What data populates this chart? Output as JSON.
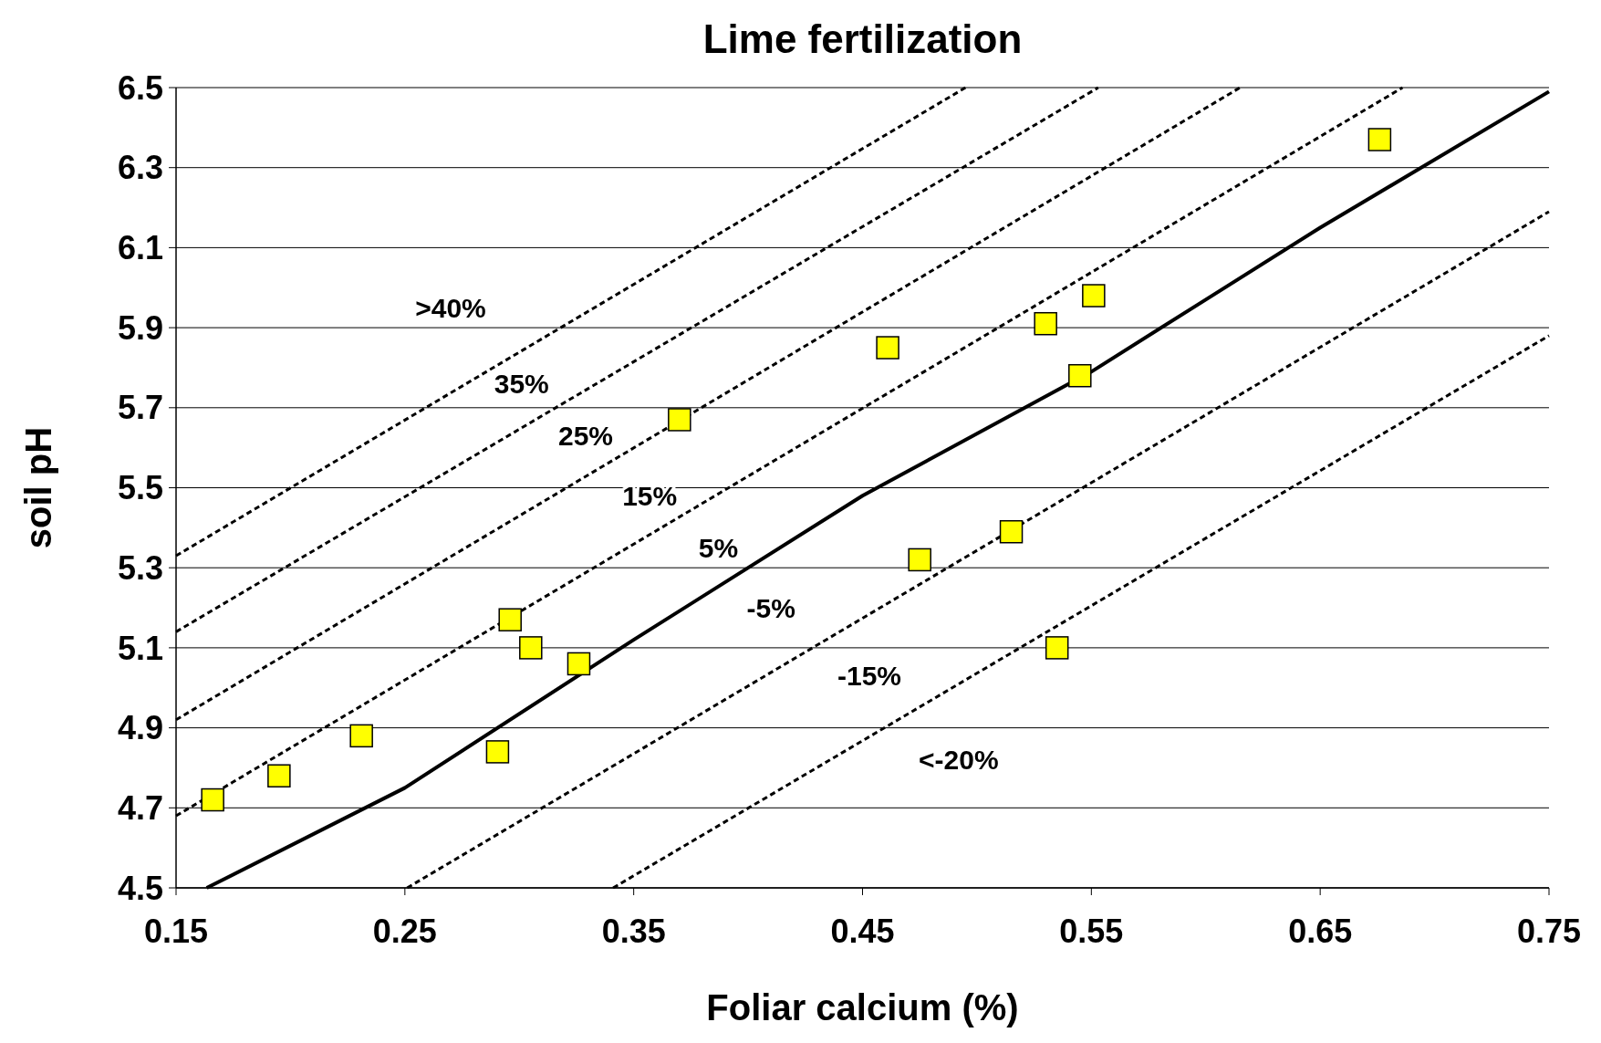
{
  "chart_data": {
    "type": "scatter",
    "title": "Lime fertilization",
    "xlabel": "Foliar calcium (%)",
    "ylabel": "soil pH",
    "xlim": [
      0.15,
      0.75
    ],
    "xticks": [
      0.15,
      0.25,
      0.35,
      0.45,
      0.55,
      0.65,
      0.75
    ],
    "ylim": [
      4.5,
      6.5
    ],
    "yticks": [
      4.5,
      4.7,
      4.9,
      5.1,
      5.3,
      5.5,
      5.7,
      5.9,
      6.1,
      6.3,
      6.5
    ],
    "grid": "y",
    "series": [
      {
        "type": "line",
        "color": "#000000",
        "line_style": "dashed",
        "x": [
          0.15,
          0.495
        ],
        "values": [
          5.33,
          6.5
        ]
      },
      {
        "type": "line",
        "color": "#000000",
        "line_style": "dashed",
        "x": [
          0.15,
          0.553
        ],
        "values": [
          5.14,
          6.5
        ]
      },
      {
        "type": "line",
        "color": "#000000",
        "line_style": "dashed",
        "x": [
          0.15,
          0.615
        ],
        "values": [
          4.92,
          6.5
        ]
      },
      {
        "type": "line",
        "color": "#000000",
        "line_style": "dashed",
        "x": [
          0.15,
          0.686
        ],
        "values": [
          4.68,
          6.5
        ]
      },
      {
        "type": "line",
        "color": "#000000",
        "line_style": "solid",
        "x": [
          0.1634,
          0.25,
          0.35,
          0.45,
          0.55,
          0.6,
          0.65,
          0.75
        ],
        "values": [
          4.5,
          4.75,
          5.12,
          5.48,
          5.79,
          5.97,
          6.15,
          6.49
        ]
      },
      {
        "type": "line",
        "color": "#000000",
        "line_style": "dashed",
        "x": [
          0.251,
          0.75
        ],
        "values": [
          4.5,
          6.19
        ]
      },
      {
        "type": "line",
        "color": "#000000",
        "line_style": "dashed",
        "x": [
          0.341,
          0.75
        ],
        "values": [
          4.5,
          5.88
        ]
      },
      {
        "color": "#ffff00",
        "marker": "square",
        "x": [
          0.166,
          0.195,
          0.231,
          0.2905,
          0.296,
          0.305,
          0.326,
          0.37,
          0.461,
          0.475,
          0.515,
          0.53,
          0.535,
          0.545,
          0.551,
          0.676
        ],
        "values": [
          4.72,
          4.78,
          4.88,
          4.84,
          5.17,
          5.1,
          5.06,
          5.67,
          5.85,
          5.32,
          5.39,
          5.91,
          5.1,
          5.78,
          5.98,
          6.37
        ]
      }
    ],
    "annotations": [
      ">40%",
      "35%",
      "25%",
      "15%",
      "5%",
      "-5%",
      "-15%",
      "<-20%"
    ]
  }
}
